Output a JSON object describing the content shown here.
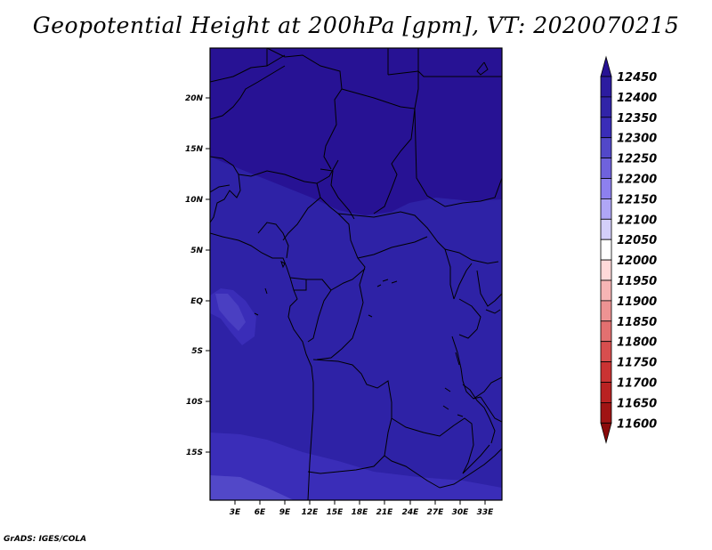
{
  "title": "Geopotential Height at 200hPa [gpm], VT: 2020070215",
  "credit": "GrADS: IGES/COLA",
  "map": {
    "lat_labels": [
      "20N",
      "15N",
      "10N",
      "5N",
      "EQ",
      "5S",
      "10S",
      "15S"
    ],
    "lon_labels": [
      "3E",
      "6E",
      "9E",
      "12E",
      "15E",
      "18E",
      "21E",
      "24E",
      "27E",
      "30E",
      "33E"
    ]
  },
  "colorbar": {
    "labels": [
      "12450",
      "12400",
      "12350",
      "12300",
      "12250",
      "12200",
      "12150",
      "12100",
      "12050",
      "12000",
      "11950",
      "11900",
      "11850",
      "11800",
      "11750",
      "11700",
      "11650",
      "11600"
    ],
    "colors": [
      "#271294",
      "#2C1CA0",
      "#3124A8",
      "#3A2DB8",
      "#5248C8",
      "#6F62DC",
      "#8D80EE",
      "#AFA6F6",
      "#D4CFFA",
      "#FFFFFF",
      "#FFD9D9",
      "#F7B5B5",
      "#EE9393",
      "#E37070",
      "#D84E4E",
      "#CA3333",
      "#B92222",
      "#A01414",
      "#8A0A0A"
    ]
  }
}
